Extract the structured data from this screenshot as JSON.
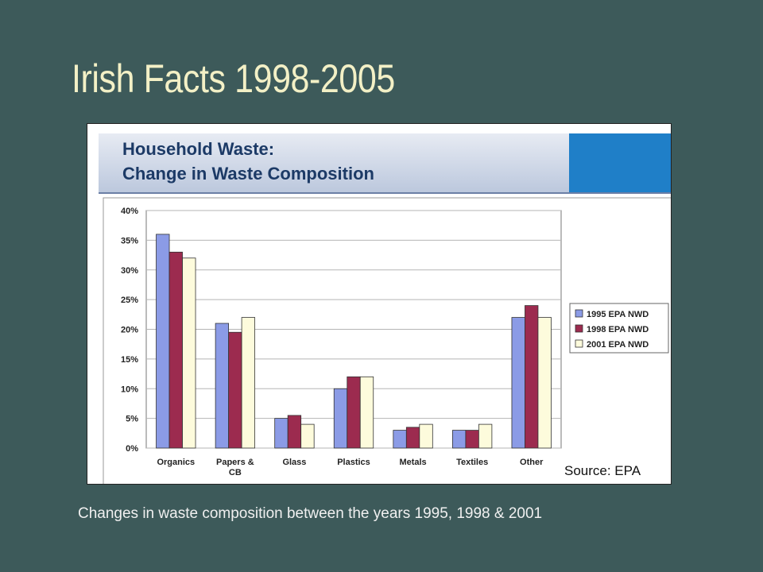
{
  "slide": {
    "title": "Irish Facts 1998-2005",
    "caption": "Changes in waste composition between the years 1995, 1998 & 2001"
  },
  "chart_data": {
    "type": "bar",
    "title_line1": "Household Waste:",
    "title_line2": "Change in Waste Composition",
    "categories": [
      "Organics",
      "Papers & CB",
      "Glass",
      "Plastics",
      "Metals",
      "Textiles",
      "Other"
    ],
    "category_label_lines": [
      [
        "Organics"
      ],
      [
        "Papers &",
        "CB"
      ],
      [
        "Glass"
      ],
      [
        "Plastics"
      ],
      [
        "Metals"
      ],
      [
        "Textiles"
      ],
      [
        "Other"
      ]
    ],
    "series": [
      {
        "name": "1995 EPA NWD",
        "color": "#8b9be6",
        "values": [
          36,
          21,
          5,
          10,
          3,
          3,
          22
        ]
      },
      {
        "name": "1998 EPA NWD",
        "color": "#9c2b4f",
        "values": [
          33,
          19.5,
          5.5,
          12,
          3.5,
          3,
          24
        ]
      },
      {
        "name": "2001 EPA NWD",
        "color": "#fdfbdc",
        "values": [
          32,
          22,
          4,
          12,
          4,
          4,
          22
        ]
      }
    ],
    "y_ticks": [
      "0%",
      "5%",
      "10%",
      "15%",
      "20%",
      "25%",
      "30%",
      "35%",
      "40%"
    ],
    "ylim": [
      0,
      40
    ],
    "grid": true,
    "legend_position": "right",
    "source": "Source: EPA"
  }
}
